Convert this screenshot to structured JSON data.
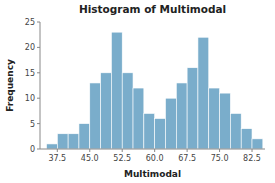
{
  "chart_data": {
    "type": "histogram",
    "title": "Histogram of Multimodal",
    "x_label": "Multimodal",
    "y_label": "Frequency",
    "bins": [
      35.0,
      37.5,
      40.0,
      42.5,
      45.0,
      47.5,
      50.0,
      52.5,
      55.0,
      57.5,
      60.0,
      62.5,
      65.0,
      67.5,
      70.0,
      72.5,
      75.0,
      77.5,
      80.0,
      82.5,
      85.0
    ],
    "values": [
      1,
      3,
      3,
      5,
      13,
      15,
      23,
      15,
      12,
      7,
      6,
      10,
      13,
      16,
      22,
      12,
      11,
      7,
      4,
      2
    ],
    "color": "#7aadcb",
    "xlim": [
      33.5,
      85.5
    ],
    "ylim": [
      0,
      25
    ],
    "xticks": [
      37.5,
      {
        "value": 45.0,
        "label": "45.0"
      },
      52.5,
      {
        "value": 60.0,
        "label": "60.0"
      },
      67.5,
      {
        "value": 75.0,
        "label": "75.0"
      },
      82.5
    ],
    "yticks": [
      0,
      5,
      10,
      15,
      20,
      25
    ],
    "grid": false
  }
}
